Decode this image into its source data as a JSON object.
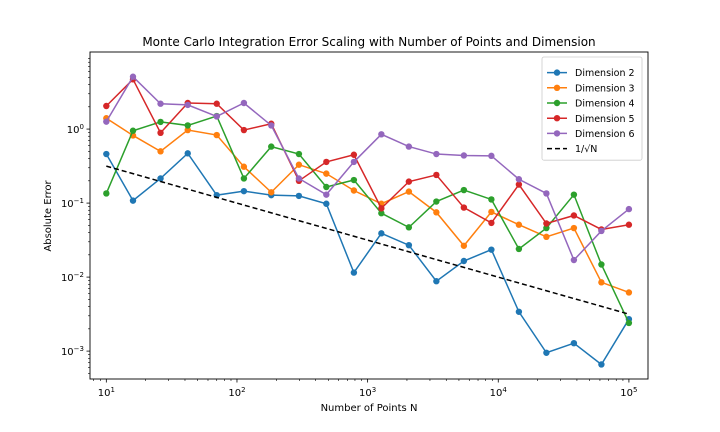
{
  "chart_data": {
    "type": "line",
    "title": "Monte Carlo Integration Error Scaling with Number of Points and Dimension",
    "xlabel": "Number of Points N",
    "ylabel": "Absolute Error",
    "xscale": "log",
    "yscale": "log",
    "xlim": [
      7.5,
      140000
    ],
    "ylim": [
      0.00042,
      11
    ],
    "xticks": [
      {
        "value": 10,
        "base": "10",
        "exp": "1"
      },
      {
        "value": 100,
        "base": "10",
        "exp": "2"
      },
      {
        "value": 1000,
        "base": "10",
        "exp": "3"
      },
      {
        "value": 10000,
        "base": "10",
        "exp": "4"
      },
      {
        "value": 100000,
        "base": "10",
        "exp": "5"
      }
    ],
    "yticks": [
      {
        "value": 0.001,
        "base": "10",
        "exp": "−3"
      },
      {
        "value": 0.01,
        "base": "10",
        "exp": "−2"
      },
      {
        "value": 0.1,
        "base": "10",
        "exp": "−1"
      },
      {
        "value": 1,
        "base": "10",
        "exp": "0"
      }
    ],
    "grid": false,
    "legend_position": "top-right",
    "x": [
      10,
      16,
      26,
      42,
      70,
      113,
      183,
      298,
      483,
      785,
      1274,
      2069,
      3359,
      5455,
      8858,
      14384,
      23357,
      37927,
      61585,
      100000
    ],
    "series": [
      {
        "name": "Dimension 2",
        "color": "#1f77b4",
        "marker": "circle",
        "values": [
          0.46,
          0.108,
          0.215,
          0.47,
          0.128,
          0.145,
          0.128,
          0.125,
          0.098,
          0.0115,
          0.039,
          0.027,
          0.0088,
          0.0165,
          0.0235,
          0.0034,
          0.00095,
          0.00128,
          0.00066,
          0.0027
        ]
      },
      {
        "name": "Dimension 3",
        "color": "#ff7f0e",
        "marker": "circle",
        "values": [
          1.4,
          0.82,
          0.5,
          0.97,
          0.83,
          0.31,
          0.14,
          0.33,
          0.25,
          0.148,
          0.098,
          0.143,
          0.075,
          0.0265,
          0.076,
          0.051,
          0.035,
          0.046,
          0.0085,
          0.0062
        ]
      },
      {
        "name": "Dimension 4",
        "color": "#2ca02c",
        "marker": "circle",
        "values": [
          0.135,
          0.95,
          1.25,
          1.12,
          1.5,
          0.215,
          0.58,
          0.46,
          0.165,
          0.205,
          0.073,
          0.047,
          0.105,
          0.15,
          0.112,
          0.024,
          0.046,
          0.13,
          0.0148,
          0.0024
        ]
      },
      {
        "name": "Dimension 5",
        "color": "#d62728",
        "marker": "circle",
        "values": [
          2.05,
          4.7,
          0.89,
          2.25,
          2.2,
          0.97,
          1.18,
          0.2,
          0.36,
          0.45,
          0.085,
          0.195,
          0.24,
          0.087,
          0.054,
          0.178,
          0.053,
          0.068,
          0.044,
          0.051
        ]
      },
      {
        "name": "Dimension 6",
        "color": "#9467bd",
        "marker": "circle",
        "values": [
          1.26,
          5.1,
          2.2,
          2.12,
          1.48,
          2.25,
          1.12,
          0.215,
          0.13,
          0.36,
          0.85,
          0.58,
          0.46,
          0.44,
          0.435,
          0.21,
          0.135,
          0.017,
          0.042,
          0.083
        ]
      },
      {
        "name": "1/√N",
        "color": "#000000",
        "dashed": true,
        "marker": "none",
        "x_range": [
          10,
          100000
        ],
        "values_at_range": [
          0.316,
          0.00316
        ]
      }
    ]
  }
}
